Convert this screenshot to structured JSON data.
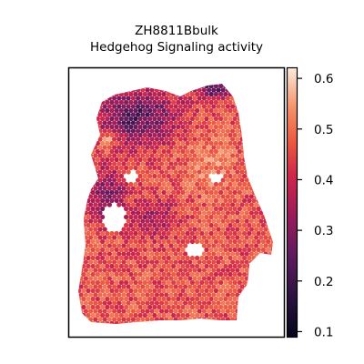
{
  "chart_data": {
    "type": "heatmap",
    "title_line1": "ZH8811Bbulk",
    "title_line2": "Hedgehog Signaling activity",
    "colorbar": {
      "colormap": "rocket",
      "range": [
        0.09,
        0.62
      ],
      "ticks": [
        0.1,
        0.2,
        0.3,
        0.4,
        0.5,
        0.6
      ],
      "tick_labels": [
        "0.1",
        "0.2",
        "0.3",
        "0.4",
        "0.5",
        "0.6"
      ]
    },
    "value_regions": [
      {
        "area": "top-left",
        "typical_value": 0.22
      },
      {
        "area": "center",
        "typical_value": 0.47
      },
      {
        "area": "left-middle",
        "typical_value": 0.28
      },
      {
        "area": "bottom",
        "typical_value": 0.45
      },
      {
        "area": "top-right edge",
        "typical_value": 0.15
      }
    ],
    "grid": false,
    "axes_ticks": false
  }
}
